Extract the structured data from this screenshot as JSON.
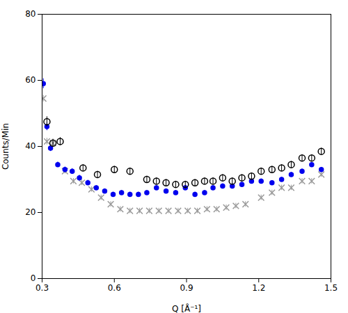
{
  "chart_data": {
    "type": "scatter",
    "xlabel": "Q [Å⁻¹]",
    "ylabel": "Counts/Min",
    "xlim": [
      0.3,
      1.5
    ],
    "ylim": [
      0,
      80
    ],
    "xticks": [
      0.3,
      0.6,
      0.9,
      1.2,
      1.5
    ],
    "yticks": [
      0,
      20,
      40,
      60,
      80
    ],
    "grid": false,
    "series": [
      {
        "color": "#999999",
        "marker": "x",
        "x": [
          0.305,
          0.32,
          0.345,
          0.395,
          0.43,
          0.465,
          0.505,
          0.545,
          0.585,
          0.625,
          0.665,
          0.705,
          0.745,
          0.785,
          0.825,
          0.865,
          0.905,
          0.945,
          0.985,
          1.025,
          1.065,
          1.105,
          1.145,
          1.21,
          1.255,
          1.295,
          1.335,
          1.38,
          1.42,
          1.46
        ],
        "values": [
          54.5,
          41.5,
          41.0,
          32.5,
          29.5,
          29.0,
          27.0,
          24.5,
          22.5,
          21.0,
          20.5,
          20.5,
          20.5,
          20.5,
          20.5,
          20.5,
          20.5,
          20.5,
          21.0,
          21.0,
          21.5,
          22.0,
          22.5,
          24.5,
          26.0,
          27.5,
          27.5,
          29.5,
          29.5,
          31.5
        ],
        "yerr": [
          1.0,
          1.0,
          1.0,
          0.8,
          0.8,
          0.8,
          0.8,
          0.8,
          0.8,
          0.8,
          0.8,
          0.8,
          0.8,
          0.8,
          0.8,
          0.8,
          0.8,
          0.8,
          0.8,
          0.8,
          0.8,
          0.8,
          0.8,
          0.8,
          0.8,
          0.8,
          0.8,
          0.8,
          0.8,
          0.8
        ]
      },
      {
        "color": "#0000ee",
        "marker": "circle",
        "x": [
          0.305,
          0.32,
          0.335,
          0.365,
          0.395,
          0.425,
          0.455,
          0.49,
          0.525,
          0.56,
          0.595,
          0.63,
          0.665,
          0.7,
          0.735,
          0.775,
          0.815,
          0.855,
          0.895,
          0.935,
          0.975,
          1.01,
          1.05,
          1.09,
          1.13,
          1.17,
          1.21,
          1.255,
          1.295,
          1.335,
          1.38,
          1.42,
          1.46
        ],
        "values": [
          59.0,
          46.0,
          39.5,
          34.5,
          33.0,
          32.5,
          30.5,
          29.0,
          27.5,
          26.5,
          25.5,
          26.0,
          25.5,
          25.5,
          26.0,
          27.5,
          26.5,
          26.0,
          27.5,
          25.5,
          26.0,
          27.5,
          28.0,
          28.0,
          28.5,
          29.5,
          29.5,
          29.0,
          30.0,
          31.5,
          32.5,
          34.5,
          33.0
        ],
        "yerr": [
          1.5,
          1.2,
          1.0,
          0.8,
          0.8,
          0.8,
          0.8,
          0.8,
          0.7,
          0.7,
          0.7,
          0.7,
          0.7,
          0.7,
          0.7,
          0.7,
          0.7,
          0.7,
          0.7,
          0.7,
          0.7,
          0.7,
          0.7,
          0.7,
          0.7,
          0.7,
          0.7,
          0.7,
          0.7,
          0.7,
          0.7,
          0.7,
          0.7
        ]
      },
      {
        "color": "#000000",
        "marker": "open_circle",
        "x": [
          0.32,
          0.345,
          0.375,
          0.47,
          0.53,
          0.6,
          0.665,
          0.735,
          0.775,
          0.815,
          0.855,
          0.895,
          0.935,
          0.975,
          1.01,
          1.05,
          1.09,
          1.13,
          1.17,
          1.21,
          1.255,
          1.295,
          1.335,
          1.38,
          1.42,
          1.46
        ],
        "values": [
          47.5,
          41.0,
          41.5,
          33.5,
          31.5,
          33.0,
          32.5,
          30.0,
          29.5,
          29.0,
          28.5,
          28.5,
          29.0,
          29.5,
          29.5,
          30.5,
          29.5,
          30.5,
          31.0,
          32.5,
          33.0,
          33.5,
          34.5,
          36.5,
          36.5,
          38.5
        ],
        "yerr": [
          1.5,
          1.2,
          1.2,
          1.0,
          1.0,
          1.0,
          1.0,
          1.0,
          1.0,
          1.0,
          1.0,
          1.0,
          1.0,
          1.0,
          1.0,
          1.0,
          1.0,
          1.0,
          1.0,
          1.0,
          1.0,
          1.0,
          1.0,
          1.0,
          1.0,
          1.0
        ]
      }
    ]
  }
}
